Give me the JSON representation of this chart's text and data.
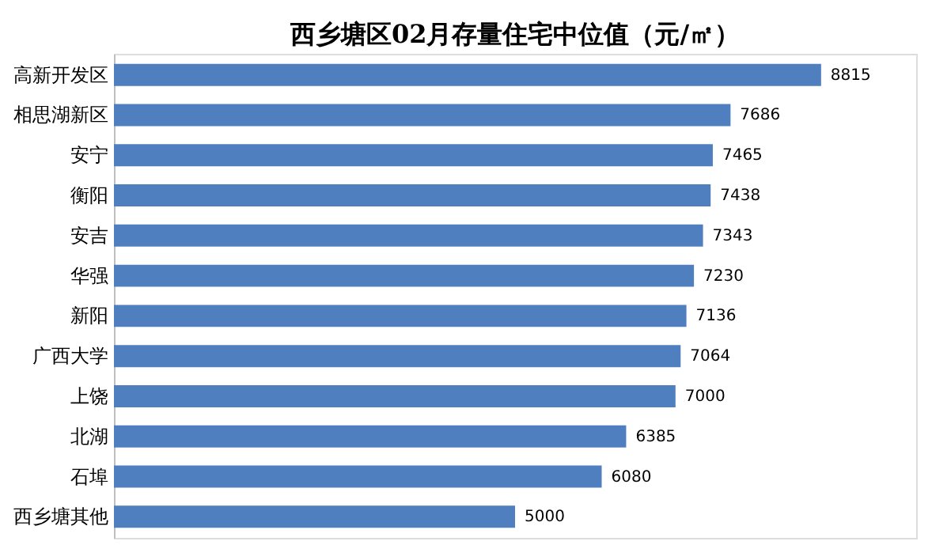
{
  "chart_data": {
    "type": "bar",
    "orientation": "horizontal",
    "title": "西乡塘区02月存量住宅中位值（元/㎡）",
    "categories": [
      "高新开发区",
      "相思湖新区",
      "安宁",
      "衡阳",
      "安吉",
      "华强",
      "新阳",
      "广西大学",
      "上饶",
      "北湖",
      "石埠",
      "西乡塘其他"
    ],
    "values": [
      8815,
      7686,
      7465,
      7438,
      7343,
      7230,
      7136,
      7064,
      7000,
      6385,
      6080,
      5000
    ],
    "color": "#4f7fbf",
    "xlim": [
      0,
      10000
    ],
    "data_labels": true,
    "grid": false,
    "tick_labels": "y"
  }
}
